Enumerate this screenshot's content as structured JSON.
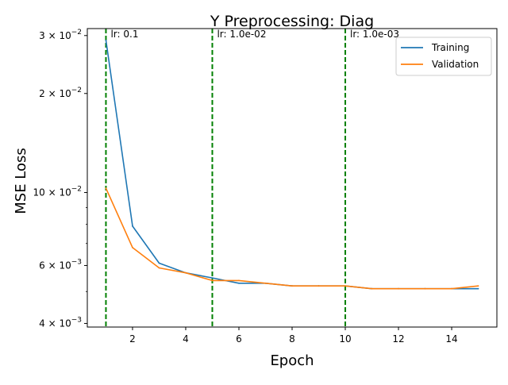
{
  "chart_data": {
    "type": "line",
    "title": "Y Preprocessing: Diag",
    "xlabel": "Epoch",
    "ylabel": "MSE Loss",
    "yscale": "log",
    "xlim": [
      0.3,
      15.7
    ],
    "ylim": [
      0.0039,
      0.0315
    ],
    "grid": false,
    "legend_position": "top-right",
    "x": [
      1,
      2,
      3,
      4,
      5,
      6,
      7,
      8,
      9,
      10,
      11,
      12,
      13,
      14,
      15
    ],
    "x_ticks": [
      {
        "value": 2,
        "label": "2"
      },
      {
        "value": 4,
        "label": "4"
      },
      {
        "value": 6,
        "label": "6"
      },
      {
        "value": 8,
        "label": "8"
      },
      {
        "value": 10,
        "label": "10"
      },
      {
        "value": 12,
        "label": "12"
      },
      {
        "value": 14,
        "label": "14"
      }
    ],
    "y_ticks_major": [
      {
        "value": 0.004,
        "mantissa": "4",
        "exponent": "−3"
      },
      {
        "value": 0.006,
        "mantissa": "6",
        "exponent": "−3"
      },
      {
        "value": 0.01,
        "mantissa": "10",
        "exponent": "−2"
      },
      {
        "value": 0.02,
        "mantissa": "2",
        "exponent": "−2"
      },
      {
        "value": 0.03,
        "mantissa": "3",
        "exponent": "−2"
      }
    ],
    "y_ticks_minor": [
      0.005,
      0.007,
      0.008,
      0.009
    ],
    "series": [
      {
        "name": "Training",
        "color": "#1f77b4",
        "values": [
          0.029,
          0.0079,
          0.0061,
          0.0057,
          0.0055,
          0.0053,
          0.0053,
          0.0052,
          0.0052,
          0.0052,
          0.0051,
          0.0051,
          0.0051,
          0.0051,
          0.0051
        ]
      },
      {
        "name": "Validation",
        "color": "#ff7f0e",
        "values": [
          0.0103,
          0.0068,
          0.0059,
          0.0057,
          0.0054,
          0.0054,
          0.0053,
          0.0052,
          0.0052,
          0.0052,
          0.0051,
          0.0051,
          0.0051,
          0.0051,
          0.0052
        ]
      }
    ],
    "vlines": [
      {
        "x": 1,
        "label": "lr: 0.1",
        "color": "#008000"
      },
      {
        "x": 5,
        "label": "lr: 1.0e-02",
        "color": "#008000"
      },
      {
        "x": 10,
        "label": "lr: 1.0e-03",
        "color": "#008000"
      }
    ]
  }
}
